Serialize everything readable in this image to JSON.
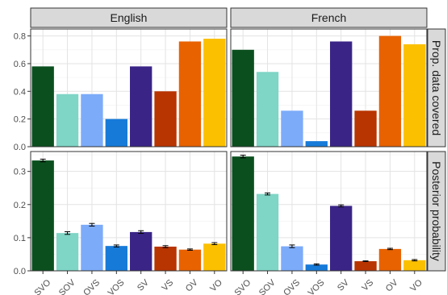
{
  "chart_data": {
    "type": "bar",
    "facet_columns": [
      "English",
      "French"
    ],
    "facet_rows": [
      "Prop. data covered",
      "Posterior probability"
    ],
    "categories": [
      "SVO",
      "SOV",
      "OVS",
      "VOS",
      "SV",
      "VS",
      "OV",
      "VO"
    ],
    "colors": [
      "#0b4f1f",
      "#7fd5c6",
      "#7cabf9",
      "#167ad8",
      "#3a2486",
      "#b83400",
      "#e86200",
      "#fbc000"
    ],
    "panels": [
      {
        "row": "Prop. data covered",
        "column": "English",
        "values": [
          0.58,
          0.38,
          0.38,
          0.2,
          0.58,
          0.4,
          0.76,
          0.78
        ]
      },
      {
        "row": "Prop. data covered",
        "column": "French",
        "values": [
          0.7,
          0.54,
          0.26,
          0.04,
          0.76,
          0.26,
          0.8,
          0.74
        ]
      },
      {
        "row": "Posterior probability",
        "column": "English",
        "values": [
          0.333,
          0.114,
          0.139,
          0.075,
          0.117,
          0.073,
          0.064,
          0.082
        ],
        "errors": [
          0.004,
          0.004,
          0.004,
          0.003,
          0.004,
          0.003,
          0.002,
          0.003
        ]
      },
      {
        "row": "Posterior probability",
        "column": "French",
        "values": [
          0.345,
          0.232,
          0.074,
          0.019,
          0.196,
          0.029,
          0.066,
          0.032
        ],
        "errors": [
          0.004,
          0.003,
          0.004,
          0.002,
          0.003,
          0.001,
          0.002,
          0.002
        ]
      }
    ],
    "y_axes": [
      {
        "row": "Prop. data covered",
        "ylim": [
          0,
          0.85
        ],
        "ticks": [
          "0.0",
          "0.2",
          "0.4",
          "0.6",
          "0.8"
        ]
      },
      {
        "row": "Posterior probability",
        "ylim": [
          0,
          0.36
        ],
        "ticks": [
          "0.0",
          "0.1",
          "0.2",
          "0.3"
        ]
      }
    ],
    "grid": true,
    "legend": "none"
  }
}
